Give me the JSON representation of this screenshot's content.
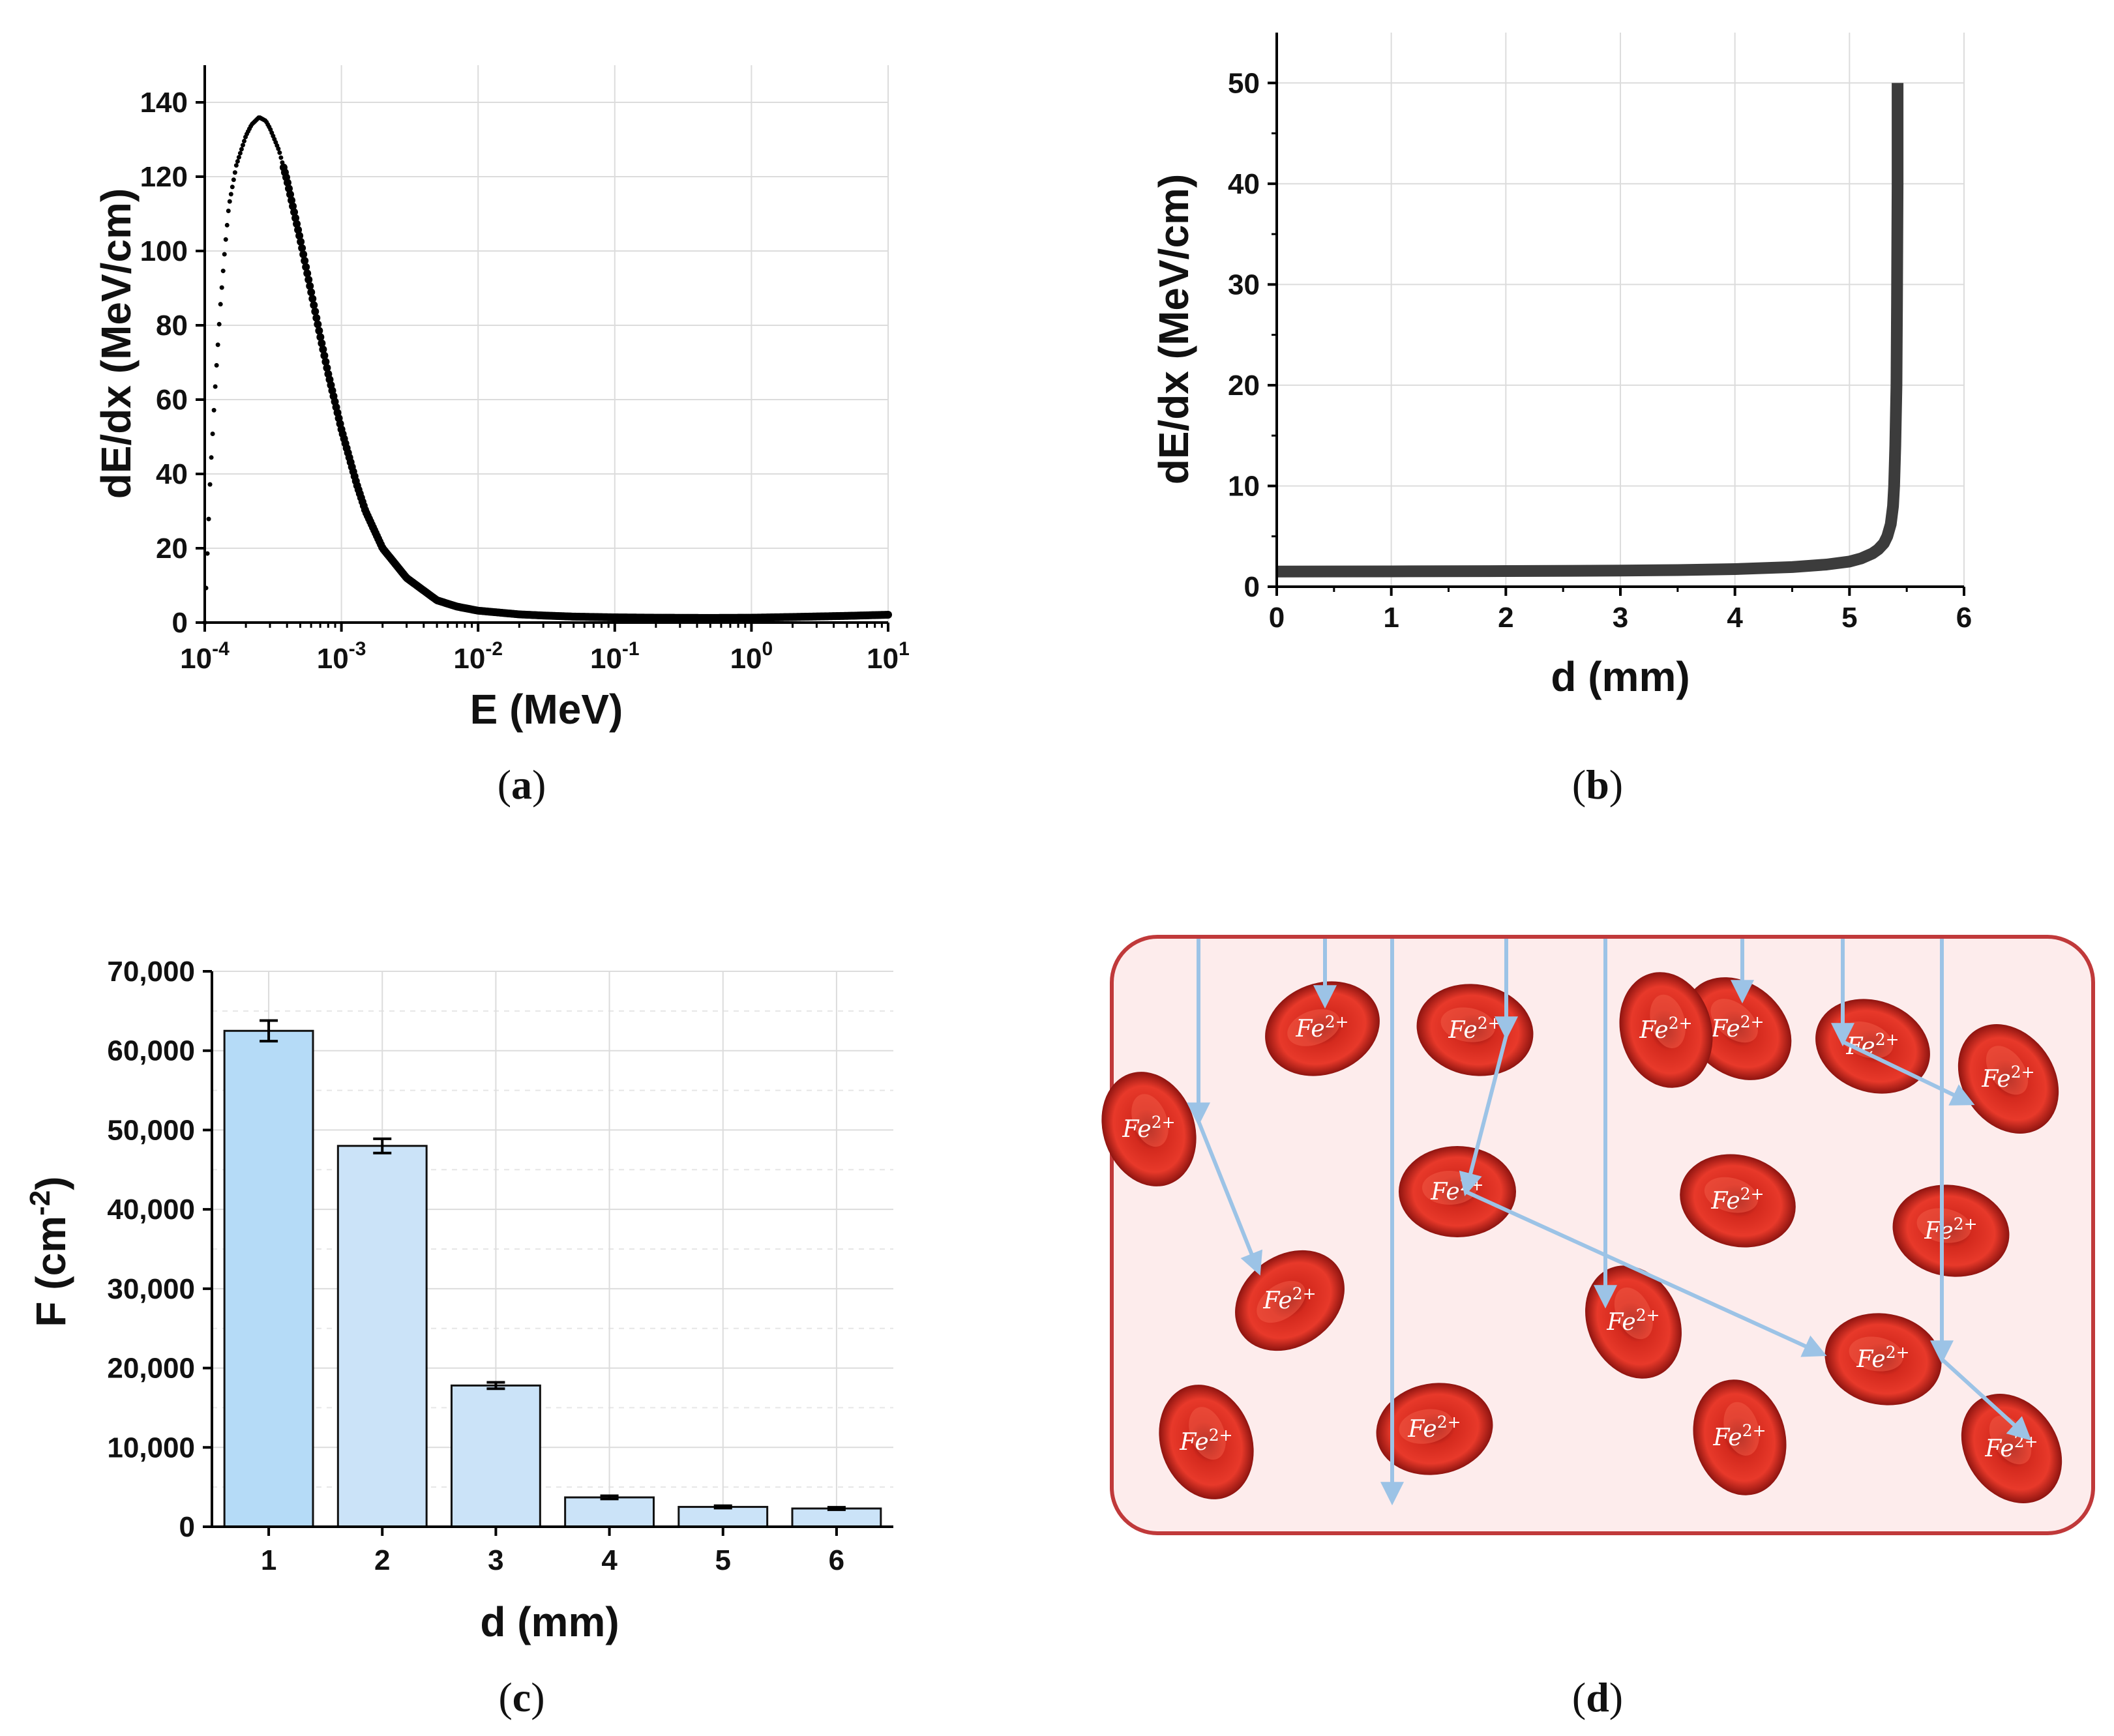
{
  "chart_data": [
    {
      "id": "a",
      "type": "scatter",
      "caption": "a",
      "xlabel": "E (MeV)",
      "ylabel": "dE/dx (MeV/cm)",
      "xscale": "log",
      "xlim": [
        0.0001,
        10
      ],
      "ylim": [
        0,
        150
      ],
      "xticks": [
        {
          "base": "10",
          "exp": "-4"
        },
        {
          "base": "10",
          "exp": "-3"
        },
        {
          "base": "10",
          "exp": "-2"
        },
        {
          "base": "10",
          "exp": "-1"
        },
        {
          "base": "10",
          "exp": "0"
        },
        {
          "base": "10",
          "exp": "1"
        }
      ],
      "yticks": [
        "0",
        "20",
        "40",
        "60",
        "80",
        "100",
        "120",
        "140"
      ],
      "x": [
        0.0001,
        0.00011,
        0.00012,
        0.00013,
        0.00014,
        0.00015,
        0.00017,
        0.0002,
        0.00022,
        0.00025,
        0.00028,
        0.0003,
        0.00035,
        0.0004,
        0.0005,
        0.0006,
        0.0007,
        0.0008,
        0.001,
        0.0013,
        0.0015,
        0.002,
        0.003,
        0.005,
        0.007,
        0.01,
        0.02,
        0.03,
        0.05,
        0.1,
        0.2,
        0.5,
        1,
        2,
        5,
        10
      ],
      "y": [
        0,
        40,
        65,
        85,
        100,
        112,
        123,
        131,
        134,
        136,
        135,
        133,
        127,
        119,
        103,
        89,
        77,
        67,
        52,
        37,
        30,
        20,
        12,
        6,
        4.3,
        3.2,
        2.2,
        1.9,
        1.6,
        1.4,
        1.3,
        1.25,
        1.3,
        1.5,
        1.8,
        2.1
      ]
    },
    {
      "id": "b",
      "type": "line",
      "caption": "b",
      "xlabel": "d (mm)",
      "ylabel": "dE/dx (MeV/cm)",
      "xlim": [
        0,
        6
      ],
      "ylim": [
        0,
        55
      ],
      "xticks": [
        "0",
        "1",
        "2",
        "3",
        "4",
        "5",
        "6"
      ],
      "yticks": [
        "0",
        "10",
        "20",
        "30",
        "40",
        "50"
      ],
      "x": [
        0,
        1,
        2,
        3,
        3.5,
        4,
        4.5,
        4.8,
        5.0,
        5.1,
        5.2,
        5.25,
        5.3,
        5.33,
        5.36,
        5.38,
        5.39,
        5.4,
        5.41,
        5.415,
        5.42,
        5.42
      ],
      "y": [
        1.5,
        1.52,
        1.55,
        1.6,
        1.65,
        1.75,
        1.95,
        2.2,
        2.5,
        2.8,
        3.3,
        3.7,
        4.3,
        5.0,
        6.2,
        8,
        10,
        14,
        20,
        28,
        40,
        50
      ]
    },
    {
      "id": "c",
      "type": "bar",
      "caption": "c",
      "xlabel": "d (mm)",
      "ylabel": "F (cm",
      "ylabel_sup": "-2",
      "ylabel_end": ")",
      "ylim": [
        0,
        70000
      ],
      "yticks": [
        "0",
        "10,000",
        "20,000",
        "30,000",
        "40,000",
        "50,000",
        "60,000",
        "70,000"
      ],
      "categories": [
        "1",
        "2",
        "3",
        "4",
        "5",
        "6"
      ],
      "values": [
        62500,
        48000,
        17800,
        3700,
        2500,
        2300
      ],
      "errors": [
        1300,
        900,
        400,
        200,
        150,
        150
      ],
      "colors": [
        "#b5dbf7",
        "#cbe3f8",
        "#cbe3f8",
        "#cbe3f8",
        "#cbe3f8",
        "#cbe3f8"
      ]
    }
  ],
  "panel_d": {
    "caption": "d",
    "ion_label": "Fe",
    "ion_charge": "2+"
  }
}
